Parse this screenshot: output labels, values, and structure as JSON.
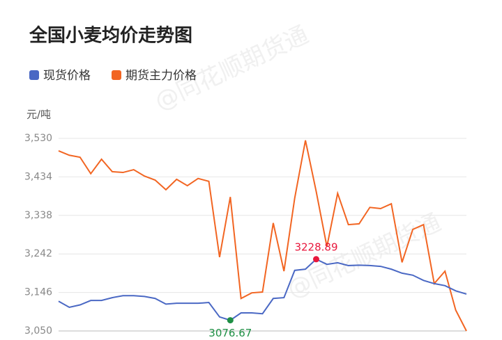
{
  "chart_data": {
    "type": "line",
    "title": "全国小麦均价走势图",
    "y_unit": "元/吨",
    "watermark": "@同花顺期货通",
    "series": [
      {
        "name": "现货价格",
        "color": "#4a68c4",
        "values": [
          3124,
          3109,
          3115,
          3126,
          3126,
          3133,
          3138,
          3138,
          3136,
          3131,
          3117,
          3119,
          3119,
          3119,
          3121,
          3085,
          3076.67,
          3095,
          3095,
          3093,
          3131,
          3133,
          3201,
          3204,
          3228.89,
          3216,
          3220,
          3213,
          3214,
          3213,
          3211,
          3204,
          3194,
          3189,
          3176,
          3168,
          3163,
          3150,
          3142
        ]
      },
      {
        "name": "期货主力价格",
        "color": "#f26522",
        "values": [
          3499,
          3488,
          3483,
          3442,
          3478,
          3447,
          3445,
          3452,
          3436,
          3426,
          3402,
          3428,
          3412,
          3430,
          3423,
          3234,
          3384,
          3131,
          3145,
          3147,
          3319,
          3199,
          3381,
          3525,
          3398,
          3260,
          3393,
          3315,
          3317,
          3358,
          3355,
          3367,
          3221,
          3303,
          3315,
          3168,
          3199,
          3102,
          3050
        ]
      }
    ],
    "ylim": [
      3050,
      3530
    ],
    "yticks": [
      {
        "value": 3050,
        "label": "3,050"
      },
      {
        "value": 3146,
        "label": "3,146"
      },
      {
        "value": 3242,
        "label": "3,242"
      },
      {
        "value": 3338,
        "label": "3,338"
      },
      {
        "value": 3434,
        "label": "3,434"
      },
      {
        "value": 3530,
        "label": "3,530"
      }
    ],
    "grid": true,
    "annotations": [
      {
        "point": "chart_data.series.0.values.24",
        "color": "#e8173c"
      },
      {
        "point": "chart_data.series.0.values.16",
        "color": "#1e8f44"
      }
    ]
  }
}
